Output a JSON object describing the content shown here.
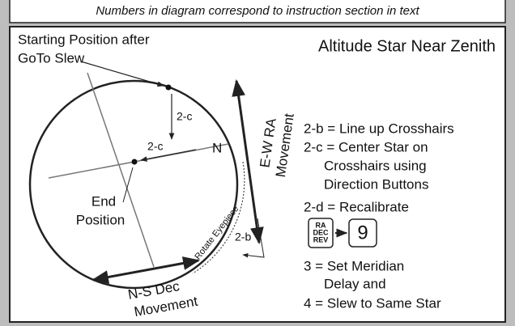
{
  "caption": "Numbers in diagram correspond to instruction section in text",
  "title": "Altitude Star Near Zenith",
  "diagram": {
    "start_label": [
      "Starting Position after",
      "GoTo Slew"
    ],
    "vertical_step": "2-c",
    "horizontal_step": "2-c",
    "north": "N",
    "end_label": [
      "End",
      "Position"
    ],
    "ew_label": [
      "E-W RA",
      "Movement"
    ],
    "rotate_label": "Rotate Eyepiece",
    "rotate_step": "2-b",
    "ns_label": [
      "N-S Dec",
      "Movement"
    ]
  },
  "legend": {
    "lines": [
      "2-b = Line up Crosshairs",
      "2-c = Center Star on",
      "Crosshairs using",
      "Direction Buttons",
      "2-d = Recalibrate"
    ],
    "key_lines": [
      "RA",
      "DEC",
      "REV"
    ],
    "key_digit": "9",
    "after": [
      "3 = Set Meridian",
      "Delay and",
      "4 = Slew to Same Star"
    ]
  }
}
